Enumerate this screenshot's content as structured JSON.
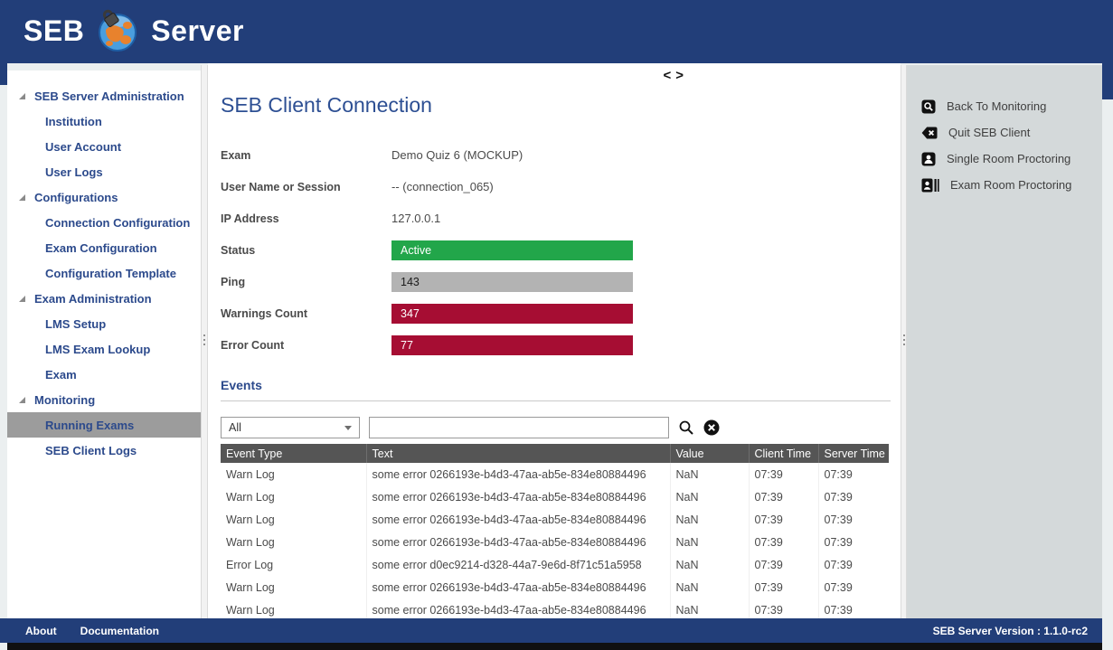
{
  "header": {
    "brand": {
      "seb": "SEB",
      "server": "Server"
    }
  },
  "sidebar": {
    "items": [
      {
        "label": "SEB Server Administration",
        "level": 0,
        "expanded": true
      },
      {
        "label": "Institution",
        "level": 1
      },
      {
        "label": "User Account",
        "level": 1
      },
      {
        "label": "User Logs",
        "level": 1
      },
      {
        "label": "Configurations",
        "level": 0,
        "expanded": true
      },
      {
        "label": "Connection Configuration",
        "level": 1
      },
      {
        "label": "Exam Configuration",
        "level": 1
      },
      {
        "label": "Configuration Template",
        "level": 1
      },
      {
        "label": "Exam Administration",
        "level": 0,
        "expanded": true
      },
      {
        "label": "LMS Setup",
        "level": 1
      },
      {
        "label": "LMS Exam Lookup",
        "level": 1
      },
      {
        "label": "Exam",
        "level": 1
      },
      {
        "label": "Monitoring",
        "level": 0,
        "expanded": true
      },
      {
        "label": "Running Exams",
        "level": 1,
        "selected": true
      },
      {
        "label": "SEB Client Logs",
        "level": 1
      }
    ]
  },
  "main": {
    "title": "SEB Client Connection",
    "nav": {
      "prev": "<",
      "next": ">"
    },
    "fields": [
      {
        "label": "Exam",
        "type": "text",
        "value": "Demo Quiz 6 (MOCKUP)"
      },
      {
        "label": "User Name or Session",
        "type": "text",
        "value": "-- (connection_065)"
      },
      {
        "label": "IP Address",
        "type": "text",
        "value": "127.0.0.1"
      },
      {
        "label": "Status",
        "type": "bar",
        "value": "Active",
        "bar_color": "#22a64a",
        "text_color": "#ffffff"
      },
      {
        "label": "Ping",
        "type": "bar",
        "value": "143",
        "bar_color": "#b3b3b3",
        "text_color": "#1a1a1a"
      },
      {
        "label": "Warnings Count",
        "type": "bar",
        "value": "347",
        "bar_color": "#a60d33",
        "text_color": "#ffffff"
      },
      {
        "label": "Error Count",
        "type": "bar",
        "value": "77",
        "bar_color": "#a60d33",
        "text_color": "#ffffff"
      }
    ],
    "events": {
      "heading": "Events",
      "filter": {
        "selected": "All",
        "search_value": ""
      },
      "columns": [
        "Event Type",
        "Text",
        "Value",
        "Client Time",
        "Server Time"
      ],
      "rows": [
        [
          "Warn Log",
          "some error 0266193e-b4d3-47aa-ab5e-834e80884496",
          "NaN",
          "07:39",
          "07:39"
        ],
        [
          "Warn Log",
          "some error 0266193e-b4d3-47aa-ab5e-834e80884496",
          "NaN",
          "07:39",
          "07:39"
        ],
        [
          "Warn Log",
          "some error 0266193e-b4d3-47aa-ab5e-834e80884496",
          "NaN",
          "07:39",
          "07:39"
        ],
        [
          "Warn Log",
          "some error 0266193e-b4d3-47aa-ab5e-834e80884496",
          "NaN",
          "07:39",
          "07:39"
        ],
        [
          "Error Log",
          "some error d0ec9214-d328-44a7-9e6d-8f71c51a5958",
          "NaN",
          "07:39",
          "07:39"
        ],
        [
          "Warn Log",
          "some error 0266193e-b4d3-47aa-ab5e-834e80884496",
          "NaN",
          "07:39",
          "07:39"
        ],
        [
          "Warn Log",
          "some error 0266193e-b4d3-47aa-ab5e-834e80884496",
          "NaN",
          "07:39",
          "07:39"
        ]
      ]
    }
  },
  "actions": {
    "items": [
      {
        "label": "Back To Monitoring",
        "icon": "back-to-monitoring-icon"
      },
      {
        "label": "Quit SEB Client",
        "icon": "quit-seb-client-icon"
      },
      {
        "label": "Single Room Proctoring",
        "icon": "single-room-proctoring-icon"
      },
      {
        "label": "Exam Room Proctoring",
        "icon": "exam-room-proctoring-icon"
      }
    ]
  },
  "footer": {
    "links": [
      "About",
      "Documentation"
    ],
    "version_label": "SEB Server Version : 1.1.0-rc2"
  },
  "colors": {
    "navy": "#223e79",
    "title_blue": "#2d4f93",
    "sidebar_blue": "#2c4a8c",
    "selected_item_gray": "#9c9c9c",
    "table_header_gray": "#555555",
    "action_panel_gray": "#d4d9da",
    "status_green": "#22a64a",
    "alert_red": "#a60d33",
    "ping_gray": "#b3b3b3"
  }
}
